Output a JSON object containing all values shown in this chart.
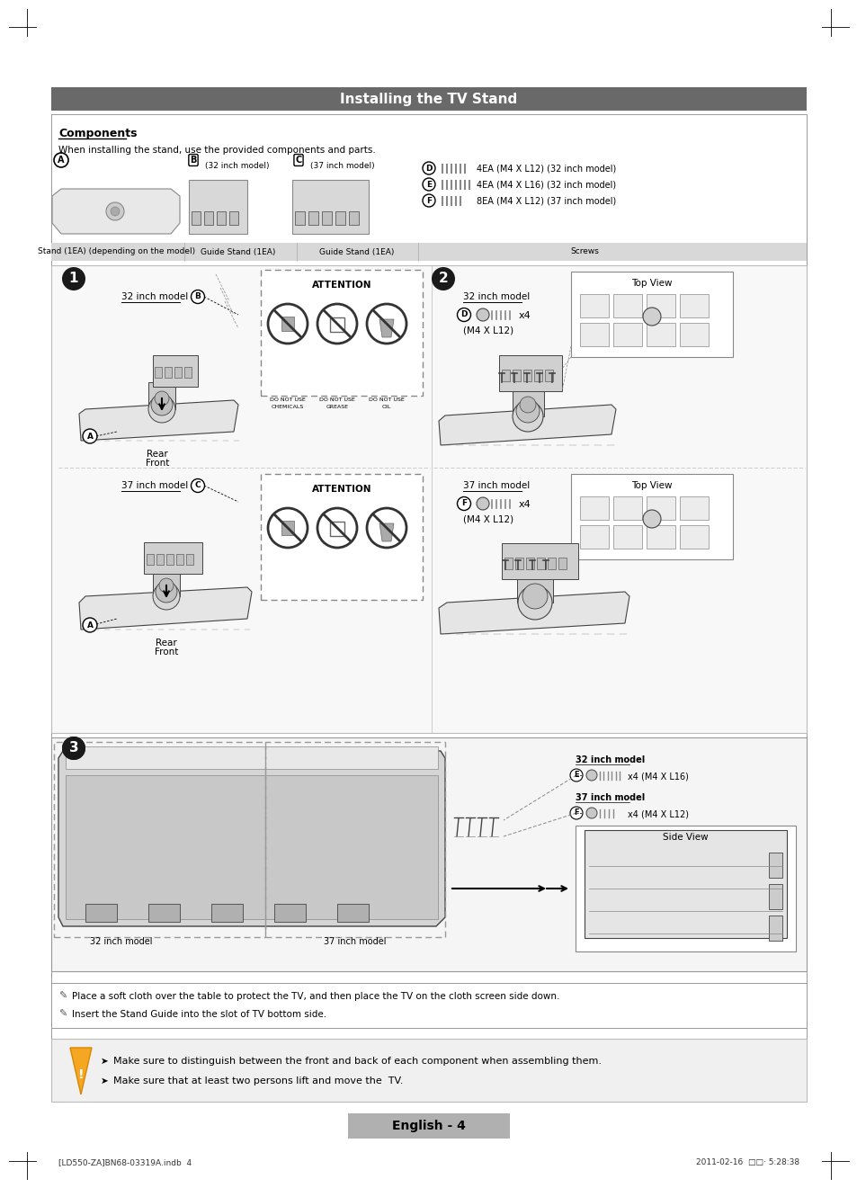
{
  "title": "Installing the TV Stand",
  "title_bg": "#696969",
  "title_color": "#ffffff",
  "page_bg": "#ffffff",
  "section_label": "Components",
  "components_text": "When installing the stand, use the provided components and parts.",
  "stand_label": "Stand (1EA) (depending on the model)",
  "guide_stand_b_label": "Guide Stand (1EA)",
  "guide_stand_c_label": "Guide Stand (1EA)",
  "screws_label": "Screws",
  "b_note": "(32 inch model)",
  "c_note": "(37 inch model)",
  "d_label": "4EA (M4 X L12) (32 inch model)",
  "e_label": "4EA (M4 X L16) (32 inch model)",
  "f_label": "8EA (M4 X L12) (37 inch model)",
  "step1_32": "32 inch model",
  "step1_rear": "Rear",
  "step1_front": "Front",
  "step1_37": "37 inch model",
  "step2_32": "32 inch model",
  "step2_d": "D",
  "step2_x4_32": "x4",
  "step2_mx_32": "(M4 X L12)",
  "step2_37": "37 inch model",
  "step2_f": "F",
  "step2_x4_37": "x4",
  "step2_mx_37": "(M4 X L12)",
  "step2_topview": "Top View",
  "step3_32": "32 inch model",
  "step3_37": "37 inch model",
  "step3_e_label": "x4 (M4 X L16)",
  "step3_f_label": "x4 (M4 X L12)",
  "step3_sideview": "Side View",
  "note1": "Place a soft cloth over the table to protect the TV, and then place the TV on the cloth screen side down.",
  "note2": "Insert the Stand Guide into the slot of TV bottom side.",
  "warning1": "Make sure to distinguish between the front and back of each component when assembling them.",
  "warning2": "Make sure that at least two persons lift and move the  TV.",
  "footer_left": "[LD550-ZA]BN68-03319A.indb  4",
  "footer_right": "2011-02-16  □□· 5:28:38",
  "footer_center": "English - 4",
  "footer_bg": "#b0b0b0",
  "attention_text": "ATTENTION",
  "step_circle_color": "#1a1a1a",
  "step_text_color": "#ffffff",
  "gray_bg": "#e8e8e8",
  "label_bar_color": "#d8d8d8",
  "warning_bg": "#f0f0f0",
  "dashed_box_color": "#999999",
  "main_box_color": "#cccccc",
  "box_light": "#f5f5f5",
  "sketch_dark": "#444444",
  "sketch_mid": "#888888",
  "sketch_light": "#bbbbbb"
}
